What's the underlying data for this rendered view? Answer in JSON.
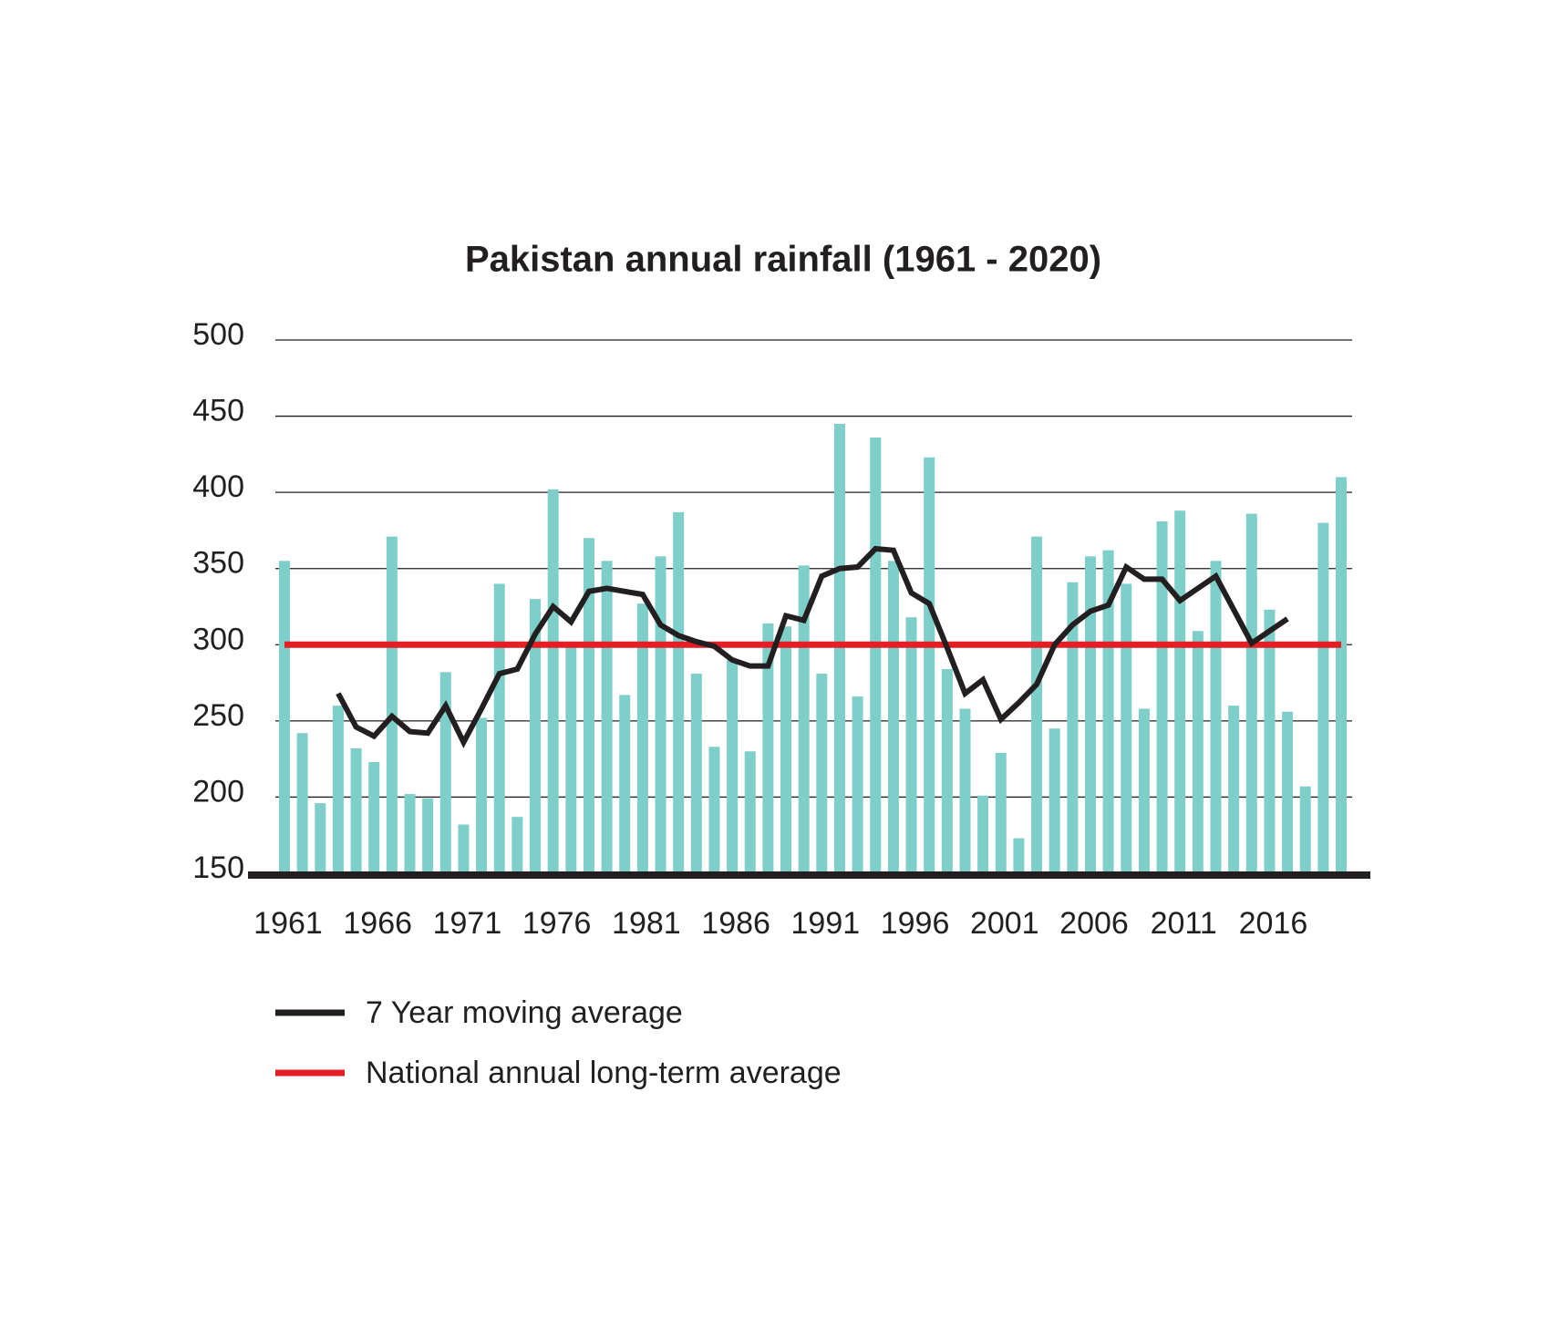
{
  "chart_data": {
    "type": "bar",
    "title": "Pakistan annual rainfall (1961 - 2020)",
    "x": [
      1961,
      1962,
      1963,
      1964,
      1965,
      1966,
      1967,
      1968,
      1969,
      1970,
      1971,
      1972,
      1973,
      1974,
      1975,
      1976,
      1977,
      1978,
      1979,
      1980,
      1981,
      1982,
      1983,
      1984,
      1985,
      1986,
      1987,
      1988,
      1989,
      1990,
      1991,
      1992,
      1993,
      1994,
      1995,
      1996,
      1997,
      1998,
      1999,
      2000,
      2001,
      2002,
      2003,
      2004,
      2005,
      2006,
      2007,
      2008,
      2009,
      2010,
      2011,
      2012,
      2013,
      2014,
      2015,
      2016,
      2017,
      2018,
      2019,
      2020
    ],
    "values": [
      355,
      242,
      196,
      260,
      232,
      223,
      371,
      202,
      199,
      282,
      182,
      252,
      340,
      187,
      330,
      402,
      300,
      370,
      355,
      267,
      327,
      358,
      387,
      281,
      233,
      290,
      230,
      314,
      312,
      352,
      281,
      445,
      266,
      436,
      355,
      318,
      423,
      284,
      258,
      201,
      229,
      173,
      371,
      245,
      341,
      358,
      362,
      340,
      258,
      381,
      388,
      309,
      355,
      260,
      386,
      323,
      256,
      207,
      380,
      410
    ],
    "color": "#7ecfc9",
    "series": [
      {
        "name": "7 Year moving average",
        "color": "#231f20",
        "values": [
          null,
          null,
          null,
          268,
          246,
          240,
          253,
          243,
          242,
          260,
          236,
          258,
          281,
          284,
          307,
          325,
          315,
          335,
          337,
          335,
          333,
          313,
          306,
          302,
          299,
          290,
          286,
          286,
          319,
          316,
          345,
          350,
          351,
          363,
          362,
          334,
          327,
          298,
          268,
          277,
          251,
          262,
          274,
          300,
          313,
          322,
          326,
          351,
          343,
          343,
          329,
          337,
          345,
          323,
          301,
          309,
          317,
          null,
          null,
          null
        ]
      }
    ],
    "hline": {
      "name": "National annual long-term average",
      "color": "#e31e24",
      "value": 300
    },
    "ylim": [
      150,
      500
    ],
    "yticks": [
      150,
      200,
      250,
      300,
      350,
      400,
      450,
      500
    ],
    "xlim": [
      1961,
      2020
    ],
    "xticks": [
      1961,
      1966,
      1971,
      1976,
      1981,
      1986,
      1991,
      1996,
      2001,
      2006,
      2011,
      2016
    ],
    "grid": true
  }
}
